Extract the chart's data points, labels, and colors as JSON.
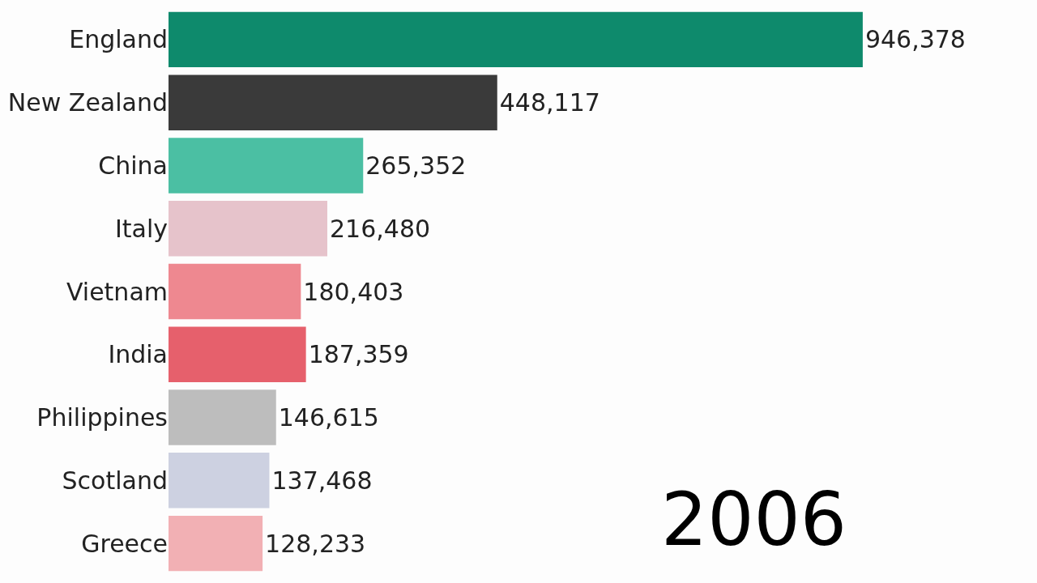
{
  "chart_data": {
    "type": "bar",
    "orientation": "horizontal",
    "categories": [
      "England",
      "New Zealand",
      "China",
      "Italy",
      "Vietnam",
      "India",
      "Philippines",
      "Scotland",
      "Greece"
    ],
    "values": [
      946378,
      448117,
      265352,
      216480,
      180403,
      187359,
      146615,
      137468,
      128233
    ],
    "colors": [
      "#0e8a6c",
      "#3a3a3a",
      "#4bbfa3",
      "#e6c3cb",
      "#ee8890",
      "#e6606c",
      "#bdbdbd",
      "#cdd1e1",
      "#f2b0b4"
    ],
    "value_labels": [
      "946,378",
      "448,117",
      "265,352",
      "216,480",
      "180,403",
      "187,359",
      "146,615",
      "137,468",
      "128,233"
    ],
    "annotations": [
      "2006"
    ]
  }
}
